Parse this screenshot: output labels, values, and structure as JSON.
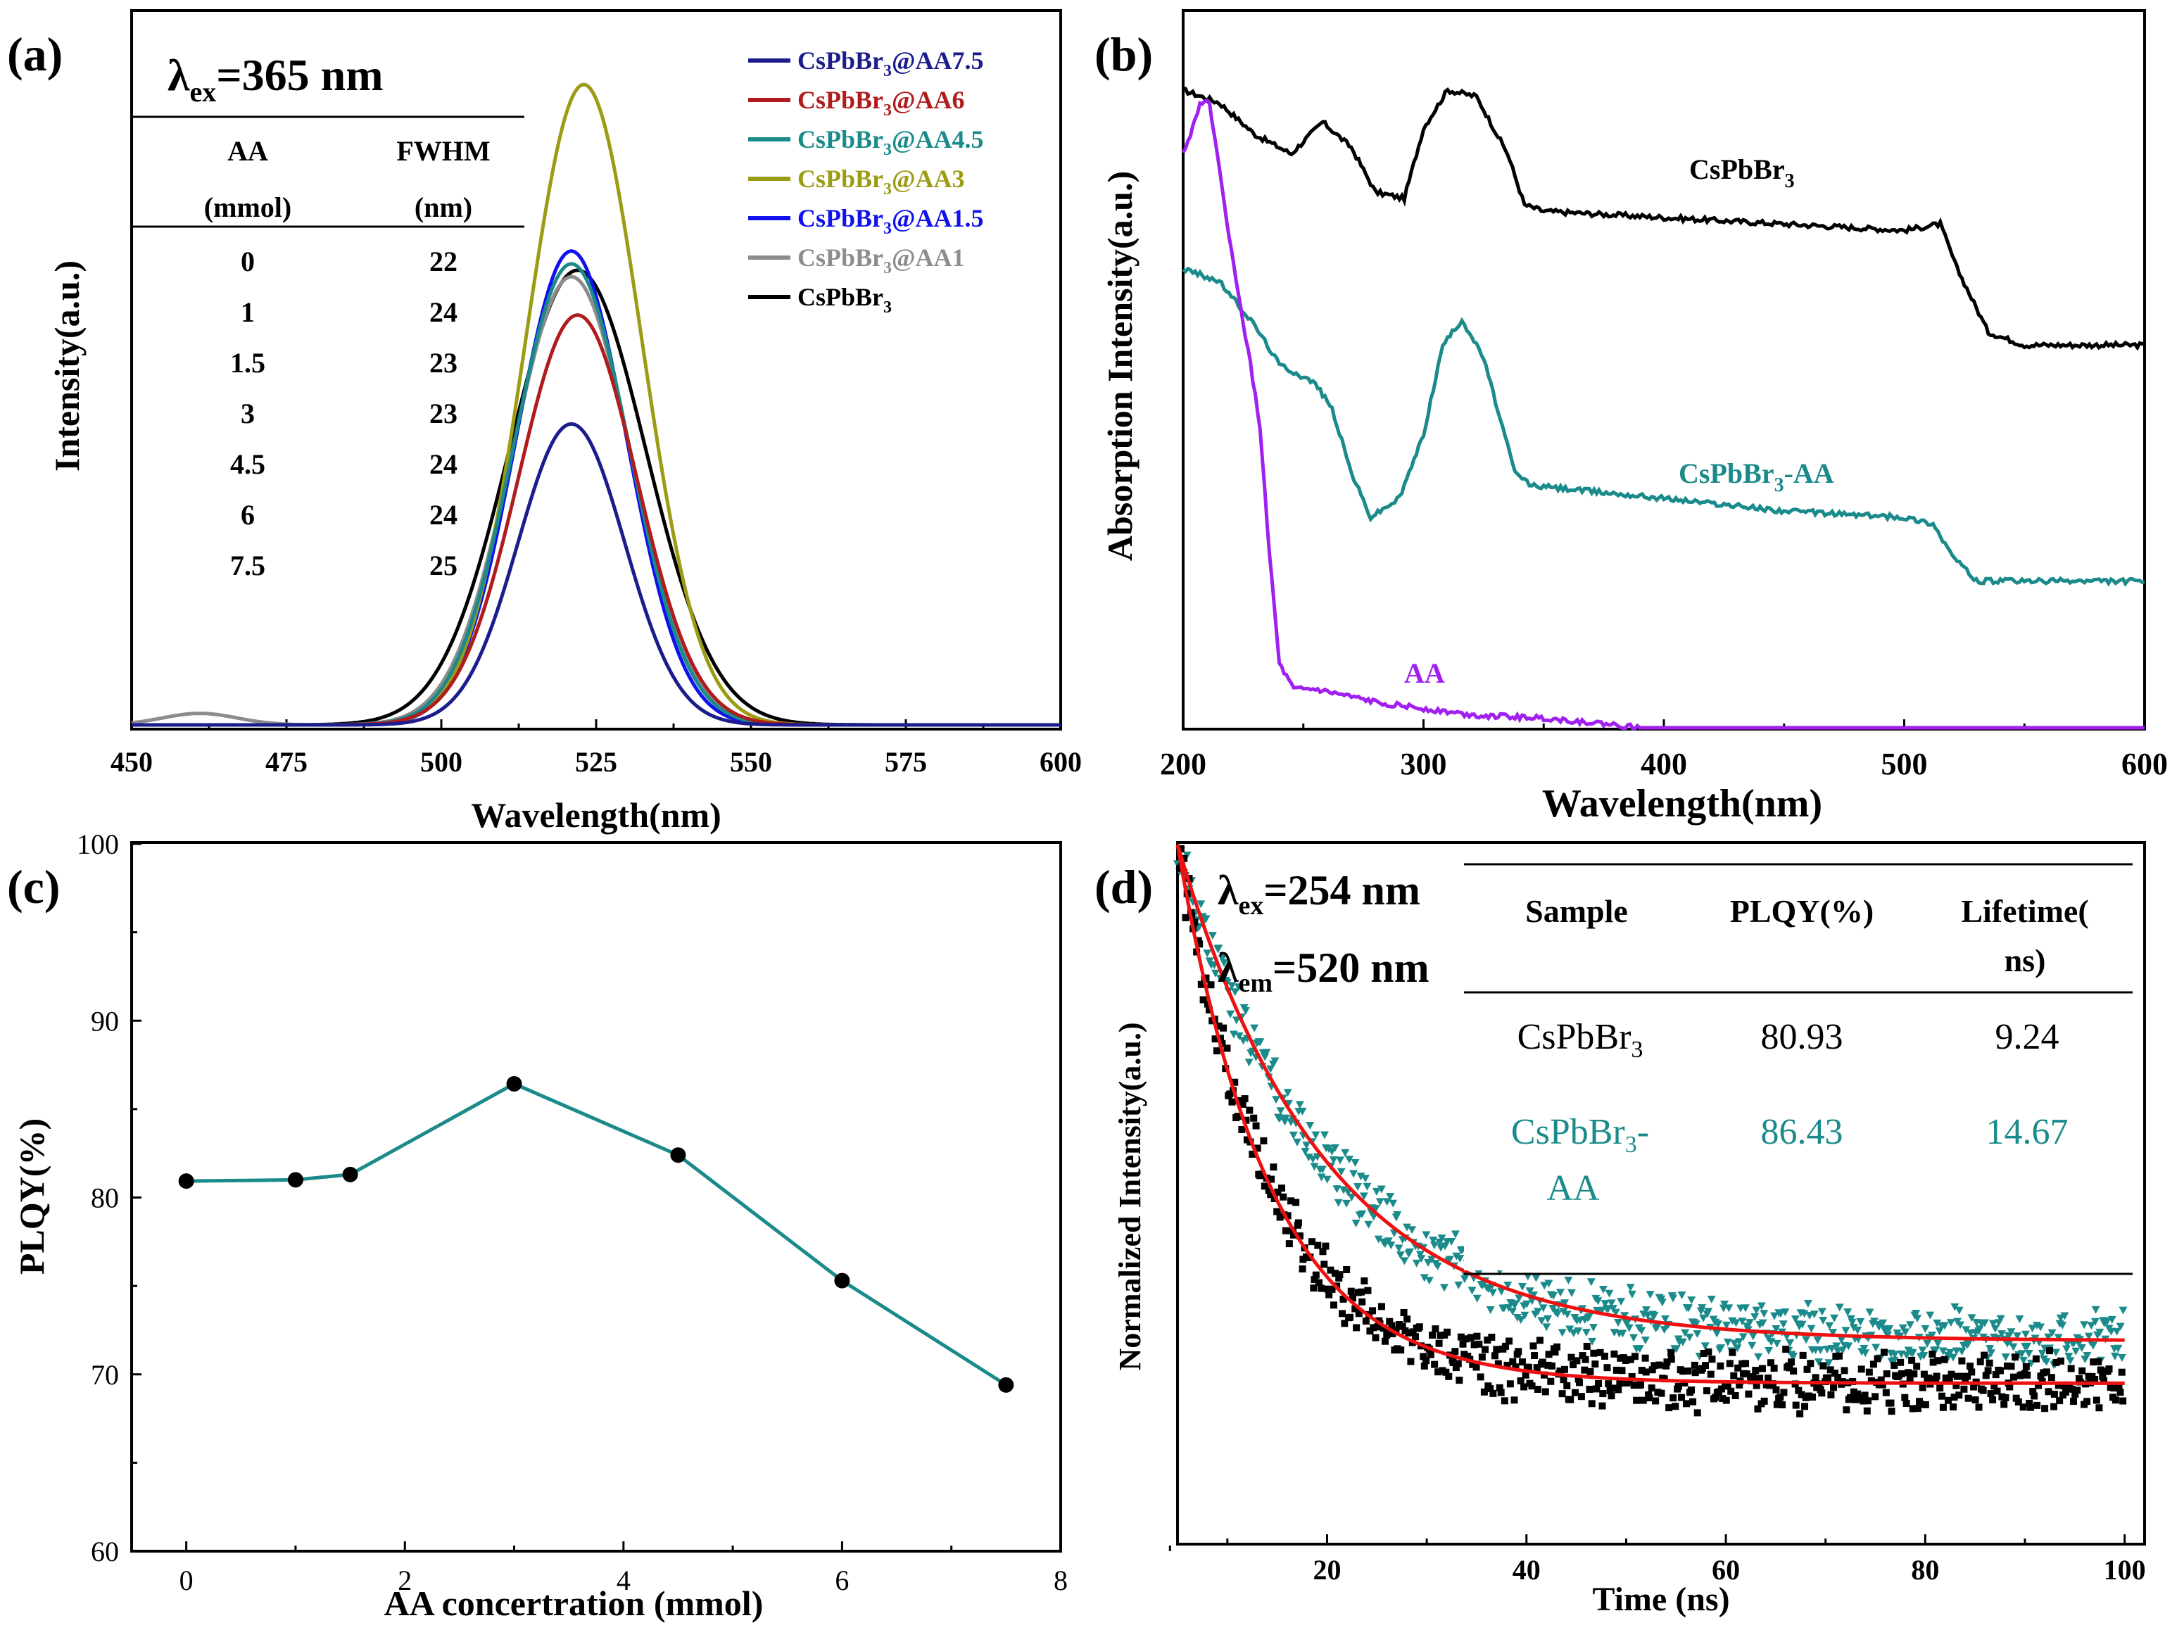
{
  "colors": {
    "navy": "#1c1c8c",
    "red": "#b01c1c",
    "teal": "#1a8a8a",
    "olive": "#9c9c14",
    "blue": "#1111ee",
    "gray": "#8c8c8c",
    "black": "#000000",
    "purple": "#a020f0",
    "fitred": "#ee1111"
  },
  "chart_data": [
    {
      "panel": "(a)",
      "type": "line",
      "xlabel": "Wavelength(nm)",
      "ylabel": "Intensity(a.u.)",
      "xlim": [
        450,
        600
      ],
      "xticks": [
        "450",
        "475",
        "500",
        "525",
        "550",
        "575",
        "600"
      ],
      "excitation": {
        "prefix": "λ",
        "sub": "ex",
        "suffix": "=365 nm"
      },
      "table": {
        "headers": [
          [
            "AA",
            "(mmol)"
          ],
          [
            "FWHM",
            "(nm)"
          ]
        ],
        "rows": [
          [
            "0",
            "22"
          ],
          [
            "1",
            "24"
          ],
          [
            "1.5",
            "23"
          ],
          [
            "3",
            "23"
          ],
          [
            "4.5",
            "24"
          ],
          [
            "6",
            "24"
          ],
          [
            "7.5",
            "25"
          ]
        ]
      },
      "series": [
        {
          "name": "CsPbBr3@AA7.5",
          "pre": "CsPbBr",
          "sub": "3",
          "post": "@AA7.5",
          "color": "navy",
          "center": 521,
          "width": 8.6,
          "peak": 0.47
        },
        {
          "name": "CsPbBr3@AA6",
          "pre": "CsPbBr",
          "sub": "3",
          "post": "@AA6",
          "color": "red",
          "center": 522,
          "width": 9.5,
          "peak": 0.64
        },
        {
          "name": "CsPbBr3@AA4.5",
          "pre": "CsPbBr",
          "sub": "3",
          "post": "@AA4.5",
          "color": "teal",
          "center": 521,
          "width": 9.3,
          "peak": 0.72
        },
        {
          "name": "CsPbBr3@AA3",
          "pre": "CsPbBr",
          "sub": "3",
          "post": "@AA3",
          "color": "olive",
          "center": 523,
          "width": 9.3,
          "peak": 1.0
        },
        {
          "name": "CsPbBr3@AA1.5",
          "pre": "CsPbBr",
          "sub": "3",
          "post": "@AA1.5",
          "color": "blue",
          "center": 521,
          "width": 8.9,
          "peak": 0.74
        },
        {
          "name": "CsPbBr3@AA1",
          "pre": "CsPbBr",
          "sub": "3",
          "post": "@AA1",
          "color": "gray",
          "center": 521,
          "width": 9.6,
          "peak": 0.7
        },
        {
          "name": "CsPbBr3",
          "pre": "CsPbBr",
          "sub": "3",
          "post": "",
          "color": "black",
          "center": 522,
          "width": 11.0,
          "peak": 0.71
        }
      ]
    },
    {
      "panel": "(b)",
      "type": "line",
      "xlabel": "Wavelength(nm)",
      "ylabel": "Absorption Intensity(a.u.)",
      "xlim": [
        200,
        600
      ],
      "xticks": [
        "200",
        "300",
        "400",
        "500",
        "600"
      ],
      "series": [
        {
          "name": "CsPbBr3",
          "label_pre": "CsPbBr",
          "label_sub": "3",
          "label_post": "",
          "color": "black",
          "x": [
            200,
            215,
            230,
            245,
            258,
            270,
            280,
            292,
            300,
            310,
            322,
            335,
            342,
            350,
            400,
            450,
            500,
            515,
            522,
            535,
            550,
            600
          ],
          "y": [
            1.0,
            0.98,
            0.93,
            0.9,
            0.95,
            0.91,
            0.84,
            0.83,
            0.94,
            1.0,
            0.99,
            0.9,
            0.82,
            0.81,
            0.8,
            0.79,
            0.78,
            0.79,
            0.72,
            0.62,
            0.6,
            0.6
          ]
        },
        {
          "name": "CsPbBr3-AA",
          "label_pre": "CsPbBr",
          "label_sub": "3",
          "label_post": "-AA",
          "color": "teal",
          "x": [
            200,
            215,
            230,
            240,
            255,
            262,
            270,
            278,
            290,
            300,
            308,
            316,
            325,
            338,
            345,
            400,
            450,
            500,
            512,
            520,
            530,
            545,
            600
          ],
          "y": [
            0.72,
            0.7,
            0.63,
            0.57,
            0.54,
            0.5,
            0.4,
            0.33,
            0.36,
            0.46,
            0.6,
            0.64,
            0.58,
            0.4,
            0.38,
            0.36,
            0.34,
            0.33,
            0.32,
            0.27,
            0.23,
            0.23,
            0.23
          ]
        },
        {
          "name": "AA",
          "label_pre": "AA",
          "label_sub": "",
          "label_post": "",
          "color": "purple",
          "x": [
            200,
            203,
            207,
            211,
            216,
            222,
            228,
            232,
            236,
            240,
            246,
            255,
            280,
            320,
            350,
            370,
            390,
            600
          ],
          "y": [
            0.9,
            0.93,
            0.98,
            0.98,
            0.85,
            0.7,
            0.57,
            0.47,
            0.27,
            0.1,
            0.06,
            0.06,
            0.04,
            0.02,
            0.015,
            0.008,
            0.0,
            0.0
          ]
        }
      ]
    },
    {
      "panel": "(c)",
      "type": "line",
      "xlabel": "AA concertration (mmol)",
      "ylabel": "PLQY(%)",
      "xlim": [
        -0.5,
        8
      ],
      "ylim": [
        60,
        100
      ],
      "xticks": [
        "0",
        "2",
        "4",
        "6",
        "8"
      ],
      "yticks": [
        "60",
        "70",
        "80",
        "90",
        "100"
      ],
      "x": [
        0,
        1,
        1.5,
        3,
        4.5,
        6,
        7.5
      ],
      "y": [
        80.93,
        81.0,
        81.3,
        86.43,
        82.4,
        75.3,
        69.4
      ]
    },
    {
      "panel": "(d)",
      "type": "scatter",
      "xlabel": "Time (ns)",
      "ylabel": "Normalized Intensity(a.u.)",
      "xlim": [
        5,
        102
      ],
      "xticks": [
        "20",
        "40",
        "60",
        "80",
        "100"
      ],
      "excitation": {
        "prefix": "λ",
        "sub": "ex",
        "suffix": "=254 nm"
      },
      "emission": {
        "prefix": "λ",
        "sub": "em",
        "suffix": "=520 nm"
      },
      "table": {
        "headers": [
          "Sample",
          "PLQY(%)",
          "Lifetime(",
          "ns)"
        ],
        "rows": [
          {
            "pre": "CsPbBr",
            "sub": "3",
            "post": "",
            "plqy": "80.93",
            "lifetime": "9.24",
            "color": "black"
          },
          {
            "pre": "CsPbBr",
            "sub": "3",
            "post": "-",
            "line2": "AA",
            "plqy": "86.43",
            "lifetime": "14.67",
            "color": "teal"
          }
        ]
      },
      "series": [
        {
          "name": "CsPbBr3",
          "marker": "square",
          "color": "black",
          "lifetime_ns": 9.24,
          "t0": 5,
          "amplitude": 0.89,
          "offset": 0.11
        },
        {
          "name": "CsPbBr3-AA",
          "marker": "triangle-down",
          "color": "teal",
          "lifetime_ns": 14.67,
          "t0": 5,
          "amplitude": 0.82,
          "offset": 0.18
        }
      ]
    }
  ]
}
